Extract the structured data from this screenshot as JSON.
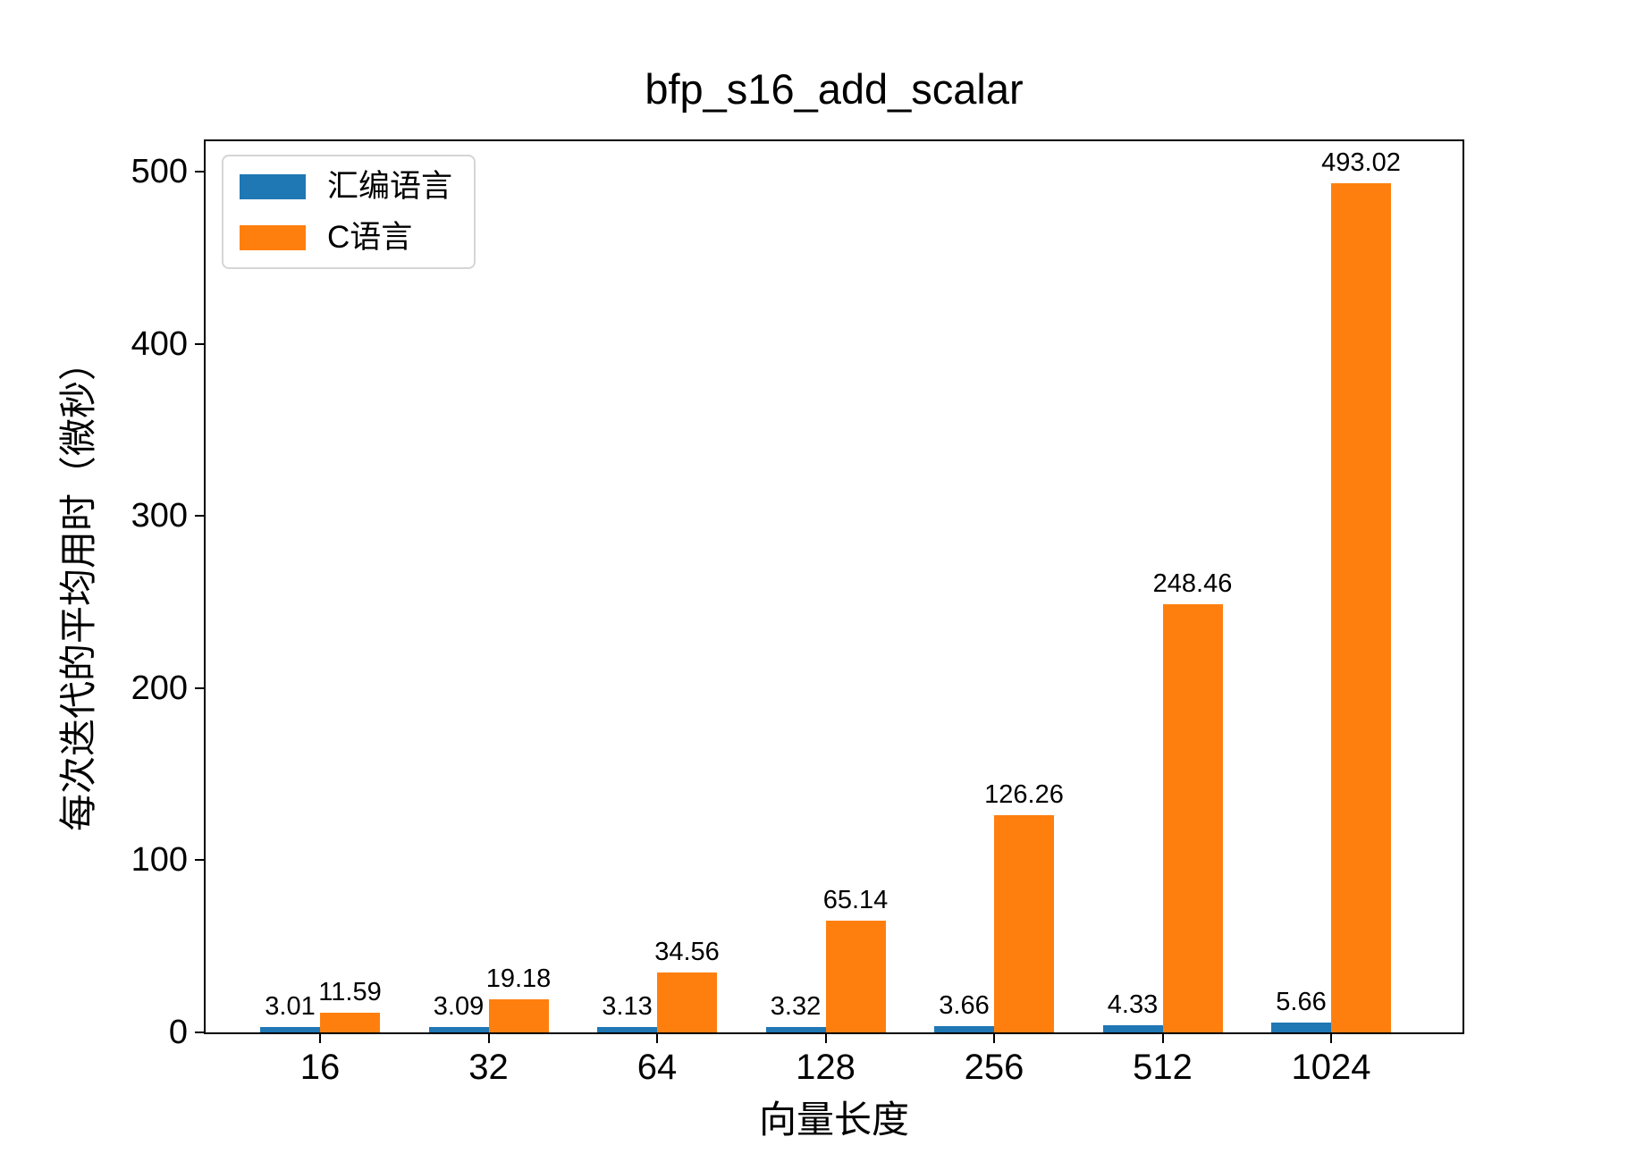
{
  "chart_data": {
    "type": "bar",
    "title": "bfp_s16_add_scalar",
    "xlabel": "向量长度",
    "ylabel": "每次迭代的平均用时（微秒）",
    "categories": [
      "16",
      "32",
      "64",
      "128",
      "256",
      "512",
      "1024"
    ],
    "series": [
      {
        "name": "汇编语言",
        "color": "#1f77b4",
        "values": [
          3.01,
          3.09,
          3.13,
          3.32,
          3.66,
          4.33,
          5.66
        ]
      },
      {
        "name": "C语言",
        "color": "#ff7f0e",
        "values": [
          11.59,
          19.18,
          34.56,
          65.14,
          126.26,
          248.46,
          493.02
        ]
      }
    ],
    "bar_value_labels": [
      "3.01",
      "3.09",
      "3.13",
      "3.32",
      "3.66",
      "4.33",
      "5.66",
      "11.59",
      "19.18",
      "34.56",
      "65.14",
      "126.26",
      "248.46",
      "493.02"
    ],
    "yticks": [
      0,
      100,
      200,
      300,
      400,
      500
    ],
    "ylim": [
      0,
      517.6
    ],
    "legend_position": "upper left",
    "grid": false,
    "bar_label_decimals": 2
  }
}
